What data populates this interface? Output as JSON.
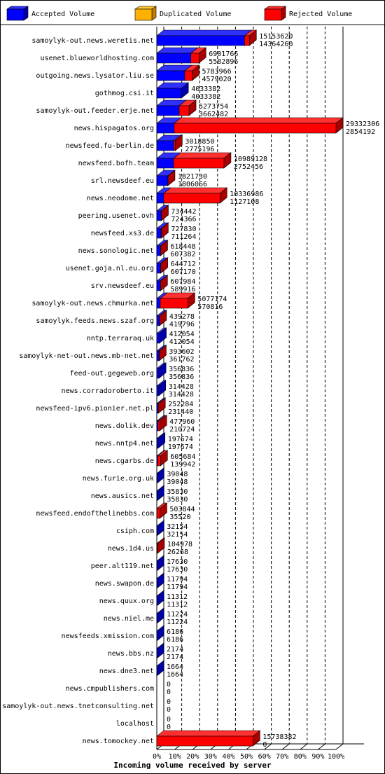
{
  "chart_data": {
    "type": "bar",
    "orientation": "horizontal",
    "stacked": true,
    "three_d": true,
    "xlabel": "Incoming volume received by server",
    "categories": [
      "samoylyk-out.news.weretis.net",
      "usenet.blueworldhosting.com",
      "outgoing.news.lysator.liu.se",
      "gothmog.csi.it",
      "samoylyk-out.feeder.erje.net",
      "news.hispagatos.org",
      "newsfeed.fu-berlin.de",
      "newsfeed.bofh.team",
      "srl.newsdeef.eu",
      "news.neodome.net",
      "peering.usenet.ovh",
      "newsfeed.xs3.de",
      "news.sonologic.net",
      "usenet.goja.nl.eu.org",
      "srv.newsdeef.eu",
      "samoylyk-out.news.chmurka.net",
      "samoylyk.feeds.news.szaf.org",
      "nntp.terraraq.uk",
      "samoylyk-net-out.news.mb-net.net",
      "feed-out.gegeweb.org",
      "news.corradoroberto.it",
      "newsfeed-ipv6.pionier.net.pl",
      "news.dolik.dev",
      "news.nntp4.net",
      "news.cgarbs.de",
      "news.furie.org.uk",
      "news.ausics.net",
      "newsfeed.endofthelinebbs.com",
      "csiph.com",
      "news.1d4.us",
      "peer.alt119.net",
      "news.swapon.de",
      "news.quux.org",
      "news.niel.me",
      "newsfeeds.xmission.com",
      "news.bbs.nz",
      "news.dne3.net",
      "news.cmpublishers.com",
      "samoylyk-out.news.tnetconsulting.net",
      "localhost",
      "news.tomockey.net"
    ],
    "totals": [
      15153620,
      6901766,
      5783966,
      4033382,
      5273754,
      29332306,
      3018850,
      10989128,
      1821730,
      10336986,
      734442,
      727830,
      618448,
      644712,
      607984,
      5077174,
      439278,
      412054,
      393602,
      356836,
      314428,
      252284,
      477960,
      197674,
      605684,
      39048,
      35830,
      503844,
      32154,
      104978,
      17630,
      11794,
      11312,
      11224,
      6186,
      2174,
      1664,
      0,
      0,
      0,
      15738382
    ],
    "series": [
      {
        "name": "Accepted Volume",
        "color": "#0000ff",
        "side": "#0000a8",
        "top": "#3030ff",
        "values": [
          14364260,
          5582896,
          4579020,
          4033382,
          3662482,
          2854192,
          2775196,
          2752456,
          1806066,
          1127108,
          724366,
          711264,
          607382,
          607170,
          589916,
          570816,
          419796,
          412054,
          361762,
          356836,
          314428,
          231440,
          210724,
          197674,
          139942,
          39048,
          35830,
          35520,
          32154,
          26268,
          17630,
          11794,
          11312,
          11224,
          6186,
          2174,
          1664,
          0,
          0,
          0,
          0
        ]
      },
      {
        "name": "Duplicated Volume",
        "color": "#ffb000",
        "side": "#c08000",
        "top": "#ffc830"
      },
      {
        "name": "Rejected Volume",
        "color": "#ff0000",
        "side": "#a80000",
        "top": "#ff3030",
        "values": [
          789360,
          1318870,
          1204946,
          0,
          1611272,
          26478114,
          243654,
          8236672,
          15664,
          9209878,
          10076,
          16566,
          11066,
          37542,
          18068,
          4506358,
          19482,
          0,
          31840,
          0,
          0,
          20844,
          267236,
          0,
          465742,
          0,
          0,
          468324,
          0,
          78710,
          0,
          0,
          0,
          0,
          0,
          0,
          0,
          0,
          0,
          0,
          15738382
        ]
      }
    ],
    "xlim": [
      0,
      29332306
    ],
    "xticks": [
      {
        "value": 0,
        "label": "0%"
      },
      {
        "value": 2933230.6,
        "label": "10%"
      },
      {
        "value": 5866461.2,
        "label": "20%"
      },
      {
        "value": 8799691.8,
        "label": "30%"
      },
      {
        "value": 11732922.4,
        "label": "40%"
      },
      {
        "value": 14666153,
        "label": "50%"
      },
      {
        "value": 17599383.6,
        "label": "60%"
      },
      {
        "value": 20532614.2,
        "label": "70%"
      },
      {
        "value": 23465844.8,
        "label": "80%"
      },
      {
        "value": 26399075.4,
        "label": "90%"
      },
      {
        "value": 29332306,
        "label": "100%"
      }
    ],
    "grid": true
  }
}
